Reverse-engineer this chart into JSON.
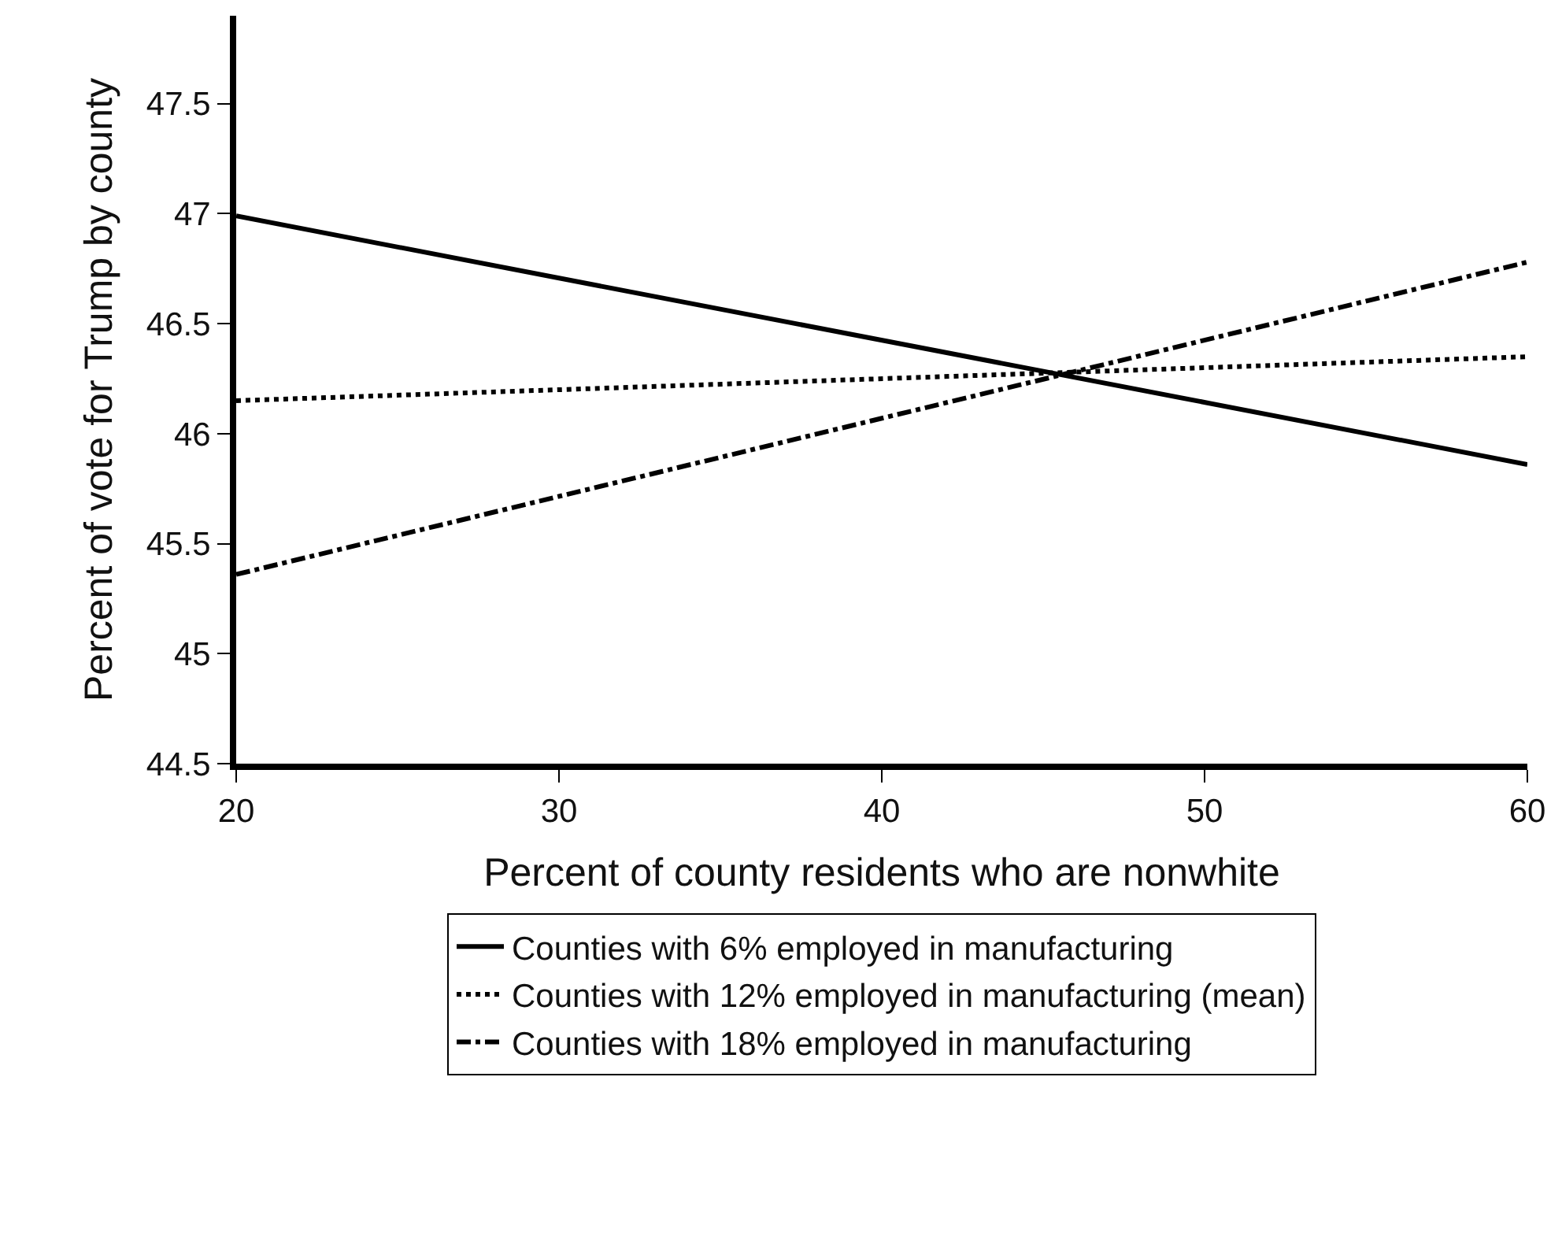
{
  "chart_data": {
    "type": "line",
    "xlabel": "Percent of county residents who are nonwhite",
    "ylabel": "Percent of vote for Trump by county",
    "x": [
      20,
      60
    ],
    "series": [
      {
        "name": "Counties with 6% employed in manufacturing",
        "color": "#000000",
        "line_style": "solid",
        "values": [
          46.99,
          45.86
        ]
      },
      {
        "name": "Counties with 12% employed in manufacturing (mean)",
        "color": "#000000",
        "line_style": "dotted",
        "values": [
          46.15,
          46.35
        ]
      },
      {
        "name": "Counties with 18% employed in manufacturing",
        "color": "#000000",
        "line_style": "dashdot",
        "values": [
          45.36,
          46.78
        ]
      }
    ],
    "xlim": [
      20,
      60
    ],
    "xticks": [
      20,
      30,
      40,
      50,
      60
    ],
    "ylim": [
      44.5,
      47.9
    ],
    "yticks": [
      44.5,
      45,
      45.5,
      46,
      46.5,
      47,
      47.5
    ],
    "grid": false,
    "legend": "bottom",
    "marker": "none"
  }
}
